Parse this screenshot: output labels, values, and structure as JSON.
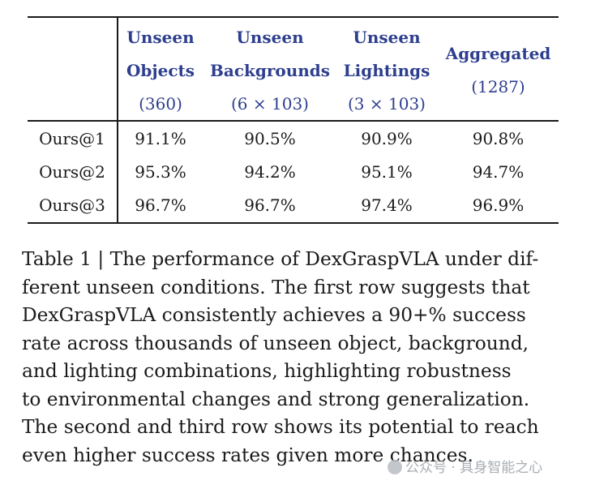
{
  "table": {
    "headers": [
      {
        "line1": "Unseen",
        "line2": "Objects",
        "line3": "(360)"
      },
      {
        "line1": "Unseen",
        "line2": "Backgrounds",
        "line3": "(6 × 103)"
      },
      {
        "line1": "Unseen",
        "line2": "Lightings",
        "line3": "(3 × 103)"
      },
      {
        "line1": "Aggregated",
        "line2": "(1287)"
      }
    ],
    "rows": [
      {
        "label": "Ours@1",
        "values": [
          "91.1%",
          "90.5%",
          "90.9%",
          "90.8%"
        ]
      },
      {
        "label": "Ours@2",
        "values": [
          "95.3%",
          "94.2%",
          "95.1%",
          "94.7%"
        ]
      },
      {
        "label": "Ours@3",
        "values": [
          "96.7%",
          "96.7%",
          "97.4%",
          "96.9%"
        ]
      }
    ]
  },
  "caption": {
    "lines": [
      "Table 1 | The performance of DexGraspVLA under dif-",
      "ferent unseen conditions. The first row suggests that",
      "DexGraspVLA consistently achieves a 90+% success",
      "rate across thousands of unseen object, background,",
      "and lighting combinations, highlighting robustness",
      "to environmental changes and strong generalization.",
      "The second and third row shows its potential to reach",
      "even higher success rates given more chances."
    ]
  },
  "watermark": {
    "text": "公众号 · 具身智能之心"
  }
}
